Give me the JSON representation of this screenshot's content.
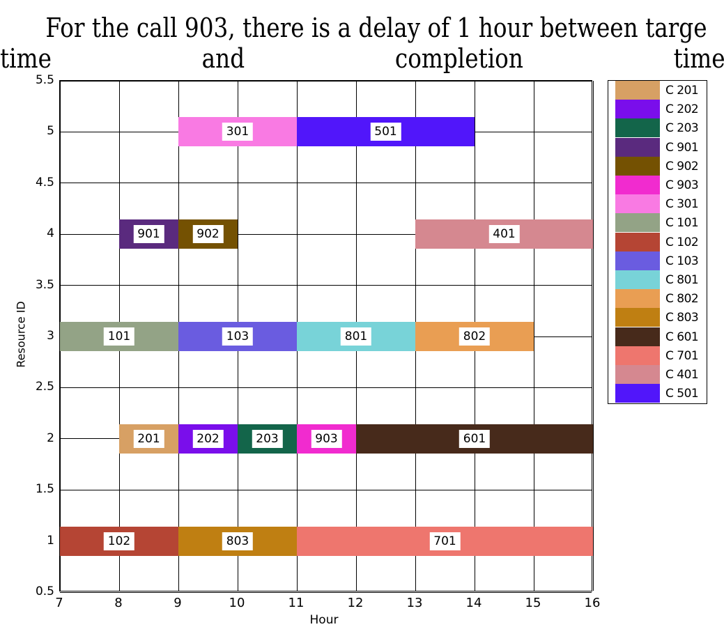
{
  "chart_data": {
    "type": "gantt",
    "title": "For the call 903, there is a delay of 1 hour between target time and completion time",
    "title_lines": [
      "For the call 903, there is a delay of 1 hour between targe",
      [
        "time",
        "and",
        "completion",
        "time"
      ]
    ],
    "xlabel": "Hour",
    "ylabel": "Resource ID",
    "xlim": [
      7,
      16
    ],
    "ylim": [
      0.5,
      5.5
    ],
    "xticks": [
      "7",
      "8",
      "9",
      "10",
      "11",
      "12",
      "13",
      "14",
      "15",
      "16"
    ],
    "yticks": [
      "0.5",
      "1",
      "1.5",
      "2",
      "2.5",
      "3",
      "3.5",
      "4",
      "4.5",
      "5",
      "5.5"
    ],
    "grid": true,
    "legend_position": "right",
    "tasks": [
      {
        "label": "301",
        "resource": 5,
        "start": 9,
        "end": 11,
        "color": "#F97AE3"
      },
      {
        "label": "501",
        "resource": 5,
        "start": 11,
        "end": 14,
        "color": "#5116FA"
      },
      {
        "label": "901",
        "resource": 4,
        "start": 8,
        "end": 9,
        "color": "#5A2A7E"
      },
      {
        "label": "902",
        "resource": 4,
        "start": 9,
        "end": 10,
        "color": "#745102"
      },
      {
        "label": "401",
        "resource": 4,
        "start": 13,
        "end": 16,
        "color": "#D58890"
      },
      {
        "label": "101",
        "resource": 3,
        "start": 7,
        "end": 9,
        "color": "#93A386"
      },
      {
        "label": "103",
        "resource": 3,
        "start": 9,
        "end": 11,
        "color": "#6A5CE0"
      },
      {
        "label": "801",
        "resource": 3,
        "start": 11,
        "end": 13,
        "color": "#78D3D8"
      },
      {
        "label": "802",
        "resource": 3,
        "start": 13,
        "end": 15,
        "color": "#E99E53"
      },
      {
        "label": "201",
        "resource": 2,
        "start": 8,
        "end": 9,
        "color": "#D7A064"
      },
      {
        "label": "202",
        "resource": 2,
        "start": 9,
        "end": 10,
        "color": "#7A0EEB"
      },
      {
        "label": "203",
        "resource": 2,
        "start": 10,
        "end": 11,
        "color": "#13654A"
      },
      {
        "label": "903",
        "resource": 2,
        "start": 11,
        "end": 12,
        "color": "#F12BCF"
      },
      {
        "label": "601",
        "resource": 2,
        "start": 12,
        "end": 16,
        "color": "#472A1B"
      },
      {
        "label": "102",
        "resource": 1,
        "start": 7,
        "end": 9,
        "color": "#B54534"
      },
      {
        "label": "803",
        "resource": 1,
        "start": 9,
        "end": 11,
        "color": "#BF7F12"
      },
      {
        "label": "701",
        "resource": 1,
        "start": 11,
        "end": 16,
        "color": "#EE766E"
      }
    ],
    "legend": [
      {
        "label": "C 201",
        "color": "#D7A064"
      },
      {
        "label": "C 202",
        "color": "#7A0EEB"
      },
      {
        "label": "C 203",
        "color": "#13654A"
      },
      {
        "label": "C 901",
        "color": "#5A2A7E"
      },
      {
        "label": "C 902",
        "color": "#745102"
      },
      {
        "label": "C 903",
        "color": "#F12BCF"
      },
      {
        "label": "C 301",
        "color": "#F97AE3"
      },
      {
        "label": "C 101",
        "color": "#93A386"
      },
      {
        "label": "C 102",
        "color": "#B54534"
      },
      {
        "label": "C 103",
        "color": "#6A5CE0"
      },
      {
        "label": "C 801",
        "color": "#78D3D8"
      },
      {
        "label": "C 802",
        "color": "#E99E53"
      },
      {
        "label": "C 803",
        "color": "#BF7F12"
      },
      {
        "label": "C 601",
        "color": "#472A1B"
      },
      {
        "label": "C 701",
        "color": "#EE766E"
      },
      {
        "label": "C 401",
        "color": "#D58890"
      },
      {
        "label": "C 501",
        "color": "#5116FA"
      }
    ]
  }
}
